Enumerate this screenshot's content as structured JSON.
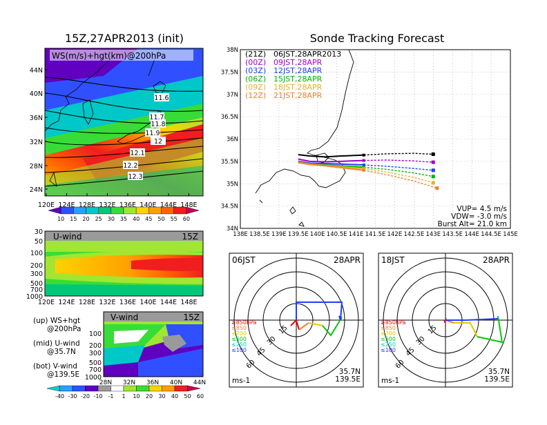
{
  "title_left": "15Z,27APR2013 (init)",
  "title_right": "Sonde Tracking Forecast",
  "map_panel": {
    "label": "WS(m/s)+hgt(km)@200hPa",
    "lat_ticks": [
      "44N",
      "40N",
      "36N",
      "32N",
      "28N",
      "24N"
    ],
    "lon_ticks": [
      "120E",
      "124E",
      "128E",
      "132E",
      "136E",
      "140E",
      "144E",
      "148E"
    ],
    "contour_labels": [
      "11.6",
      "11.7",
      "11.8",
      "11.9",
      "12",
      "12.1",
      "12.2",
      "12.3"
    ],
    "colorbar_labels": [
      "10",
      "15",
      "20",
      "25",
      "30",
      "35",
      "40",
      "45",
      "50",
      "55",
      "60"
    ],
    "colorbar_colors": [
      "#6000c0",
      "#3050ff",
      "#2aa0ff",
      "#00c8c8",
      "#00c878",
      "#38dc38",
      "#a0e632",
      "#ffd200",
      "#ffa000",
      "#ff6400",
      "#f01e1e",
      "#c8005a"
    ]
  },
  "u_panel": {
    "label": "U-wind",
    "time": "15Z",
    "y_ticks": [
      "30",
      "50",
      "100",
      "200",
      "300",
      "500",
      "700",
      "1000"
    ],
    "x_ticks": [
      "120E",
      "124E",
      "128E",
      "132E",
      "136E",
      "140E",
      "144E",
      "148E"
    ]
  },
  "v_panel": {
    "label": "V-wind",
    "time": "15Z",
    "y_ticks": [
      "100",
      "200",
      "300",
      "500",
      "700",
      "1000"
    ],
    "x_ticks": [
      "28N",
      "32N",
      "36N",
      "40N",
      "44N"
    ]
  },
  "bottom_colorbar": {
    "labels": [
      "-40",
      "-30",
      "-20",
      "-10",
      "-1",
      "1",
      "10",
      "20",
      "30",
      "40",
      "50",
      "60"
    ],
    "colors": [
      "#00d2c8",
      "#2aa0ff",
      "#3050ff",
      "#6000c0",
      "#9a9a9a",
      "#ffffff",
      "#a0e632",
      "#38dc38",
      "#ffd200",
      "#ffa000",
      "#f01e1e",
      "#c8005a"
    ]
  },
  "notes": [
    {
      "line1": "(up) WS+hgt",
      "line2": "@200hPa"
    },
    {
      "line1": "(mid) U-wind",
      "line2": "@35.7N"
    },
    {
      "line1": "(bot) V-wind",
      "line2": "@139.5E"
    }
  ],
  "track_panel": {
    "lat_ticks": [
      "38N",
      "37.5N",
      "37N",
      "36.5N",
      "36N",
      "35.5N",
      "35N",
      "34.5N",
      "34N"
    ],
    "lon_ticks": [
      "138E",
      "138.5E",
      "139E",
      "139.5E",
      "140E",
      "140.5E",
      "141E",
      "141.5E",
      "142E",
      "142.5E",
      "143E",
      "143.5E",
      "144E",
      "144.5E",
      "145E"
    ],
    "legend": [
      {
        "code": "(21Z)",
        "text": "06JST,28APR2013",
        "color": "#000000"
      },
      {
        "code": "(00Z)",
        "text": "09JST,28APR",
        "color": "#a000c8"
      },
      {
        "code": "(03Z)",
        "text": "12JST,28APR",
        "color": "#1e3cff"
      },
      {
        "code": "(06Z)",
        "text": "15JST,28APR",
        "color": "#00b400"
      },
      {
        "code": "(09Z)",
        "text": "18JST,28APR",
        "color": "#e6af2d"
      },
      {
        "code": "(12Z)",
        "text": "21JST,28APR",
        "color": "#f08228"
      }
    ],
    "params": [
      "VUP= 4.5 m/s",
      "VDW= -3.0 m/s",
      "Burst Alt= 21.0 km"
    ]
  },
  "polar_left": {
    "time": "06JST",
    "date": "28APR",
    "ring_labels": [
      "15",
      "30",
      "45",
      "60"
    ],
    "levels": [
      {
        "label": "≥850hPa",
        "color": "#e60000"
      },
      {
        "label": "≤850",
        "color": "#f08228"
      },
      {
        "label": "≤700",
        "color": "#e6c800"
      },
      {
        "label": "≤500",
        "color": "#00c800"
      },
      {
        "label": "≤250",
        "color": "#00c8c8"
      },
      {
        "label": "≤100",
        "color": "#1e3cff"
      }
    ],
    "unit": "ms-1",
    "loc1": "35.7N",
    "loc2": "139.5E"
  },
  "polar_right": {
    "time": "18JST",
    "date": "28APR",
    "ring_labels": [
      "15",
      "30",
      "45",
      "60"
    ],
    "levels": [
      {
        "label": "≥850hPa",
        "color": "#e60000"
      },
      {
        "label": "≤850",
        "color": "#f08228"
      },
      {
        "label": "≤700",
        "color": "#e6c800"
      },
      {
        "label": "≤500",
        "color": "#00c800"
      },
      {
        "label": "≤250",
        "color": "#00c8c8"
      },
      {
        "label": "≤100",
        "color": "#1e3cff"
      }
    ],
    "unit": "ms-1",
    "loc1": "35.7N",
    "loc2": "139.5E"
  },
  "chart_data": [
    {
      "type": "line",
      "x": [
        139.5,
        140.0,
        140.5,
        141.0,
        141.5,
        142.0,
        142.5,
        143.0
      ],
      "xlim": [
        138,
        145
      ],
      "ylim": [
        34,
        38
      ],
      "series": [
        {
          "name": "06JST,28APR2013",
          "color": "#000000",
          "lon": [
            139.5,
            139.8,
            140.2,
            140.6,
            141.2,
            141.8,
            142.5,
            143.0
          ],
          "lat": [
            35.65,
            35.62,
            35.6,
            35.62,
            35.64,
            35.67,
            35.68,
            35.66
          ]
        },
        {
          "name": "09JST,28APR",
          "color": "#a000c8",
          "lon": [
            139.5,
            139.8,
            140.2,
            140.6,
            141.2,
            141.8,
            142.5,
            143.0
          ],
          "lat": [
            35.55,
            35.5,
            35.49,
            35.5,
            35.52,
            35.53,
            35.51,
            35.48
          ]
        },
        {
          "name": "12JST,28APR",
          "color": "#1e3cff",
          "lon": [
            139.5,
            139.8,
            140.2,
            140.6,
            141.2,
            141.8,
            142.5,
            143.0
          ],
          "lat": [
            35.5,
            35.46,
            35.45,
            35.44,
            35.42,
            35.39,
            35.34,
            35.3
          ]
        },
        {
          "name": "15JST,28APR",
          "color": "#00b400",
          "lon": [
            139.5,
            139.8,
            140.2,
            140.6,
            141.2,
            141.8,
            142.5,
            143.0
          ],
          "lat": [
            35.48,
            35.44,
            35.42,
            35.4,
            35.37,
            35.32,
            35.24,
            35.16
          ]
        },
        {
          "name": "18JST,28APR",
          "color": "#e6af2d",
          "lon": [
            139.5,
            139.8,
            140.2,
            140.6,
            141.2,
            141.8,
            142.5,
            143.0
          ],
          "lat": [
            35.48,
            35.44,
            35.41,
            35.38,
            35.34,
            35.26,
            35.14,
            35.02
          ]
        },
        {
          "name": "21JST,28APR",
          "color": "#f08228",
          "lon": [
            139.5,
            139.8,
            140.2,
            140.6,
            141.2,
            141.8,
            142.5,
            143.1
          ],
          "lat": [
            35.47,
            35.43,
            35.4,
            35.36,
            35.3,
            35.2,
            35.06,
            34.9
          ]
        }
      ]
    }
  ]
}
